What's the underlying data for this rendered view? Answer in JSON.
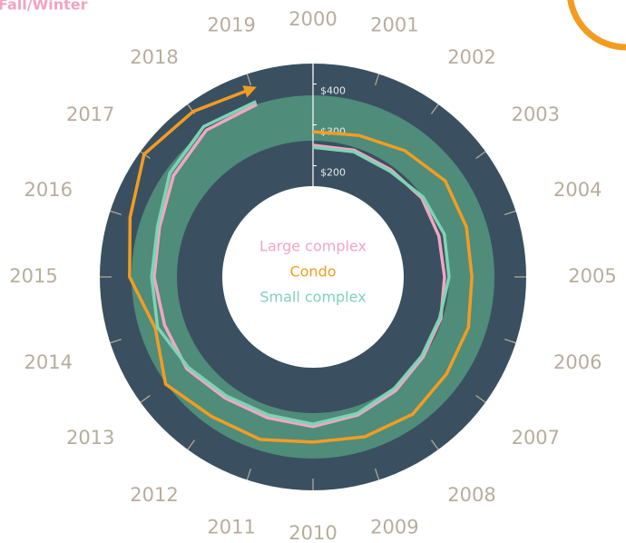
{
  "chart_data": {
    "type": "radial-line",
    "title": "Fall/Winter",
    "categories": [
      "2000",
      "2001",
      "2002",
      "2003",
      "2004",
      "2005",
      "2006",
      "2007",
      "2008",
      "2009",
      "2010",
      "2011",
      "2012",
      "2013",
      "2014",
      "2015",
      "2016",
      "2017",
      "2018",
      "2019"
    ],
    "series": [
      {
        "name": "Large complex",
        "color": "#f2a6c0",
        "values": [
          250,
          254,
          252,
          257,
          252,
          250,
          257,
          261,
          272,
          283,
          294,
          290,
          294,
          310,
          310,
          317,
          323,
          350,
          372,
          372
        ]
      },
      {
        "name": "Condo",
        "color": "#f39c22",
        "values": [
          283,
          292,
          310,
          328,
          323,
          317,
          328,
          332,
          343,
          339,
          332,
          346,
          350,
          374,
          334,
          377,
          399,
          439,
          428,
          412
        ]
      },
      {
        "name": "Small complex",
        "color": "#7fd3b5",
        "values": [
          245,
          250,
          248,
          261,
          266,
          261,
          254,
          257,
          266,
          279,
          288,
          283,
          288,
          305,
          328,
          323,
          328,
          361,
          383,
          379
        ]
      }
    ],
    "ylim": [
      150,
      450
    ],
    "yticks": [
      {
        "value": 200,
        "label": "$200"
      },
      {
        "value": 300,
        "label": "$300"
      },
      {
        "value": 400,
        "label": "$400"
      }
    ]
  }
}
